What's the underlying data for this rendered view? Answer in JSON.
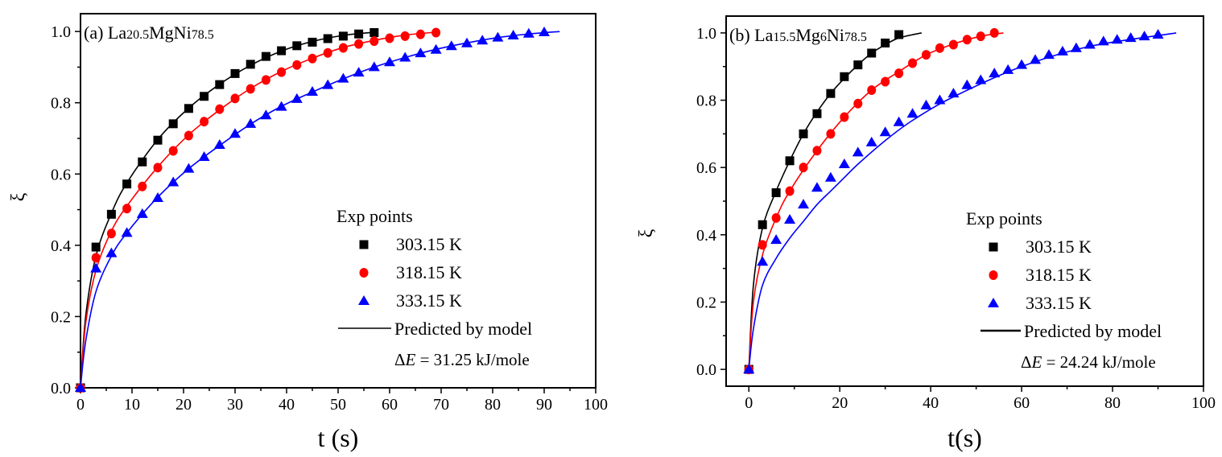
{
  "chart_data": [
    {
      "type": "scatter",
      "panel_label": "(a)",
      "compound": {
        "base1": "La",
        "sub1": "20.5",
        "base2": "MgNi",
        "sub2": "78.5",
        "base3": "",
        "sub3": ""
      },
      "xlabel": "t (s)",
      "ylabel": "ξ",
      "xlim": [
        0,
        100
      ],
      "ylim": [
        0,
        1.05
      ],
      "xticks": [
        0,
        10,
        20,
        30,
        40,
        50,
        60,
        70,
        80,
        90,
        100
      ],
      "yticks": [
        "0.0",
        "0.2",
        "0.4",
        "0.6",
        "0.8",
        "1.0"
      ],
      "grid": false,
      "legend": {
        "title": "Exp points",
        "model_label": "Predicted by model",
        "energy_prefix": "Δ",
        "energy_var": "E",
        "energy_value": " = 31.25 kJ/mole",
        "placement": "bottom-right"
      },
      "series": [
        {
          "name": "303.15 K",
          "color": "#000000",
          "marker": "square",
          "x": [
            0,
            3,
            6,
            9,
            12,
            15,
            18,
            21,
            24,
            27,
            30,
            33,
            36,
            39,
            42,
            45,
            48,
            51,
            54,
            57
          ],
          "y": [
            0,
            0.395,
            0.487,
            0.572,
            0.634,
            0.695,
            0.741,
            0.784,
            0.818,
            0.851,
            0.882,
            0.908,
            0.93,
            0.946,
            0.96,
            0.97,
            0.98,
            0.987,
            0.993,
            0.997
          ],
          "model": [
            [
              0,
              0
            ],
            [
              1,
              0.2
            ],
            [
              3,
              0.37
            ],
            [
              6,
              0.49
            ],
            [
              9,
              0.575
            ],
            [
              15,
              0.697
            ],
            [
              21,
              0.785
            ],
            [
              27,
              0.852
            ],
            [
              33,
              0.905
            ],
            [
              39,
              0.945
            ],
            [
              45,
              0.972
            ],
            [
              51,
              0.989
            ],
            [
              57,
              0.998
            ]
          ]
        },
        {
          "name": "318.15 K",
          "color": "#ff0000",
          "marker": "circle",
          "x": [
            0,
            3,
            6,
            9,
            12,
            15,
            18,
            21,
            24,
            27,
            30,
            33,
            36,
            39,
            42,
            45,
            48,
            51,
            54,
            57,
            60,
            63,
            66,
            69
          ],
          "y": [
            0,
            0.365,
            0.433,
            0.503,
            0.565,
            0.618,
            0.665,
            0.708,
            0.747,
            0.782,
            0.812,
            0.839,
            0.864,
            0.886,
            0.906,
            0.924,
            0.94,
            0.954,
            0.965,
            0.973,
            0.981,
            0.987,
            0.992,
            0.997
          ],
          "model": [
            [
              0,
              0
            ],
            [
              1,
              0.18
            ],
            [
              3,
              0.33
            ],
            [
              6,
              0.44
            ],
            [
              9,
              0.51
            ],
            [
              15,
              0.62
            ],
            [
              21,
              0.71
            ],
            [
              27,
              0.78
            ],
            [
              33,
              0.84
            ],
            [
              39,
              0.888
            ],
            [
              45,
              0.925
            ],
            [
              51,
              0.955
            ],
            [
              57,
              0.975
            ],
            [
              63,
              0.99
            ],
            [
              69,
              0.998
            ]
          ]
        },
        {
          "name": "333.15 K",
          "color": "#0000ff",
          "marker": "triangle",
          "x": [
            0,
            3,
            6,
            9,
            12,
            15,
            18,
            21,
            24,
            27,
            30,
            33,
            36,
            39,
            42,
            45,
            48,
            51,
            54,
            57,
            60,
            63,
            66,
            69,
            72,
            75,
            78,
            81,
            84,
            87,
            90
          ],
          "y": [
            0,
            0.335,
            0.378,
            0.435,
            0.488,
            0.533,
            0.577,
            0.615,
            0.648,
            0.682,
            0.713,
            0.741,
            0.765,
            0.789,
            0.811,
            0.831,
            0.85,
            0.868,
            0.885,
            0.9,
            0.914,
            0.927,
            0.939,
            0.949,
            0.959,
            0.967,
            0.975,
            0.983,
            0.989,
            0.994,
            0.998
          ],
          "model": [
            [
              0,
              0
            ],
            [
              1,
              0.13
            ],
            [
              3,
              0.27
            ],
            [
              6,
              0.37
            ],
            [
              9,
              0.435
            ],
            [
              15,
              0.535
            ],
            [
              21,
              0.615
            ],
            [
              27,
              0.68
            ],
            [
              33,
              0.74
            ],
            [
              39,
              0.79
            ],
            [
              45,
              0.83
            ],
            [
              51,
              0.867
            ],
            [
              57,
              0.9
            ],
            [
              63,
              0.927
            ],
            [
              69,
              0.95
            ],
            [
              75,
              0.968
            ],
            [
              81,
              0.983
            ],
            [
              87,
              0.993
            ],
            [
              93,
              1.0
            ]
          ]
        }
      ]
    },
    {
      "type": "scatter",
      "panel_label": "(b)",
      "compound": {
        "base1": "La",
        "sub1": "15.5",
        "base2": "Mg",
        "sub2": "6",
        "base3": "Ni",
        "sub3": "78.5"
      },
      "xlabel": "t(s)",
      "ylabel": "ξ",
      "xlim": [
        -5,
        100
      ],
      "ylim": [
        -0.05,
        1.05
      ],
      "xticks": [
        0,
        20,
        40,
        60,
        80,
        100
      ],
      "yticks": [
        "0.0",
        "0.2",
        "0.4",
        "0.6",
        "0.8",
        "1.0"
      ],
      "grid": false,
      "legend": {
        "title": "Exp points",
        "model_label": "Predicted by model",
        "energy_prefix": "Δ",
        "energy_var": "E",
        "energy_value": " = 24.24 kJ/mole",
        "placement": "bottom-right"
      },
      "series": [
        {
          "name": "303.15 K",
          "color": "#000000",
          "marker": "square",
          "x": [
            0,
            3,
            6,
            9,
            12,
            15,
            18,
            21,
            24,
            27,
            30,
            33
          ],
          "y": [
            0,
            0.43,
            0.525,
            0.62,
            0.7,
            0.76,
            0.82,
            0.87,
            0.905,
            0.94,
            0.97,
            0.995
          ],
          "model": [
            [
              0,
              0
            ],
            [
              1,
              0.25
            ],
            [
              3,
              0.42
            ],
            [
              6,
              0.53
            ],
            [
              9,
              0.62
            ],
            [
              12,
              0.7
            ],
            [
              15,
              0.765
            ],
            [
              18,
              0.82
            ],
            [
              21,
              0.865
            ],
            [
              24,
              0.905
            ],
            [
              27,
              0.94
            ],
            [
              30,
              0.965
            ],
            [
              33,
              0.985
            ],
            [
              38,
              1.0
            ]
          ]
        },
        {
          "name": "318.15 K",
          "color": "#ff0000",
          "marker": "circle",
          "x": [
            0,
            3,
            6,
            9,
            12,
            15,
            18,
            21,
            24,
            27,
            30,
            33,
            36,
            39,
            42,
            45,
            48,
            51,
            54
          ],
          "y": [
            0,
            0.37,
            0.45,
            0.53,
            0.6,
            0.65,
            0.7,
            0.75,
            0.79,
            0.83,
            0.855,
            0.88,
            0.91,
            0.935,
            0.955,
            0.965,
            0.98,
            0.99,
            1.0
          ],
          "model": [
            [
              0,
              0
            ],
            [
              1,
              0.2
            ],
            [
              3,
              0.34
            ],
            [
              6,
              0.45
            ],
            [
              9,
              0.53
            ],
            [
              15,
              0.65
            ],
            [
              21,
              0.75
            ],
            [
              27,
              0.83
            ],
            [
              33,
              0.885
            ],
            [
              39,
              0.935
            ],
            [
              45,
              0.967
            ],
            [
              51,
              0.99
            ],
            [
              56,
              1.0
            ]
          ]
        },
        {
          "name": "333.15 K",
          "color": "#0000ff",
          "marker": "triangle",
          "x": [
            0,
            3,
            6,
            9,
            12,
            15,
            18,
            21,
            24,
            27,
            30,
            33,
            36,
            39,
            42,
            45,
            48,
            51,
            54,
            57,
            60,
            63,
            66,
            69,
            72,
            75,
            78,
            81,
            84,
            87,
            90
          ],
          "y": [
            0,
            0.32,
            0.385,
            0.445,
            0.49,
            0.54,
            0.57,
            0.61,
            0.645,
            0.675,
            0.705,
            0.735,
            0.76,
            0.785,
            0.8,
            0.82,
            0.845,
            0.86,
            0.88,
            0.89,
            0.905,
            0.92,
            0.935,
            0.945,
            0.955,
            0.965,
            0.975,
            0.98,
            0.985,
            0.99,
            0.995
          ],
          "model": [
            [
              0,
              0
            ],
            [
              1,
              0.12
            ],
            [
              3,
              0.25
            ],
            [
              6,
              0.33
            ],
            [
              9,
              0.39
            ],
            [
              12,
              0.44
            ],
            [
              15,
              0.49
            ],
            [
              18,
              0.53
            ],
            [
              21,
              0.57
            ],
            [
              24,
              0.61
            ],
            [
              30,
              0.68
            ],
            [
              36,
              0.74
            ],
            [
              45,
              0.81
            ],
            [
              60,
              0.9
            ],
            [
              75,
              0.96
            ],
            [
              94,
              1.0
            ]
          ]
        }
      ]
    }
  ]
}
